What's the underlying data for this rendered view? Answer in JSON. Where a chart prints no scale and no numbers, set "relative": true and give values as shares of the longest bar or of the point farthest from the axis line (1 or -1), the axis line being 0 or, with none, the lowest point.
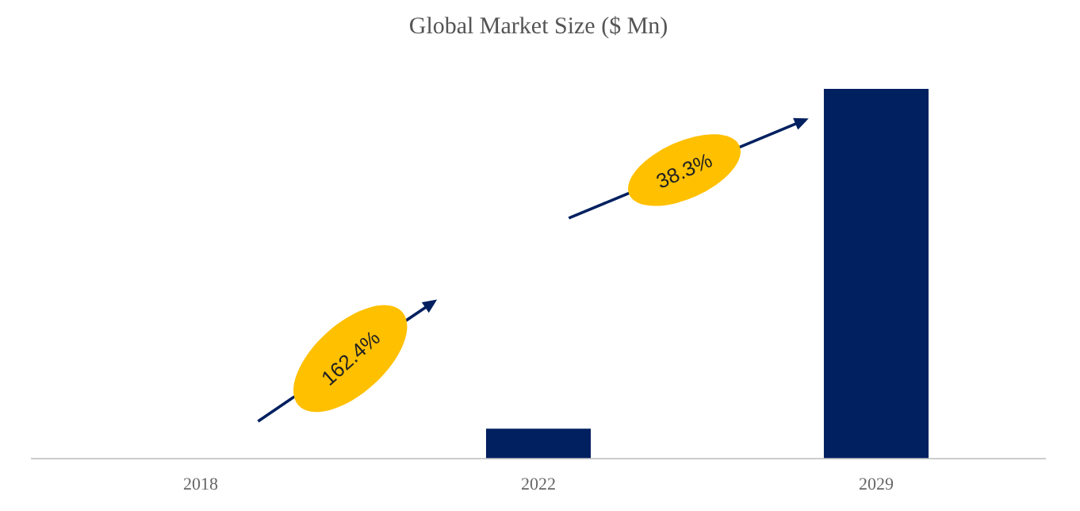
{
  "chart_data": {
    "type": "bar",
    "title": "Global Market Size ($ Mn)",
    "categories": [
      "2018",
      "2022",
      "2029"
    ],
    "values": [
      0,
      0.08,
      1
    ],
    "color": "#002060",
    "relative": true,
    "grid": false,
    "legend": false,
    "annotations": [
      "162.4%",
      "38.3%"
    ]
  }
}
